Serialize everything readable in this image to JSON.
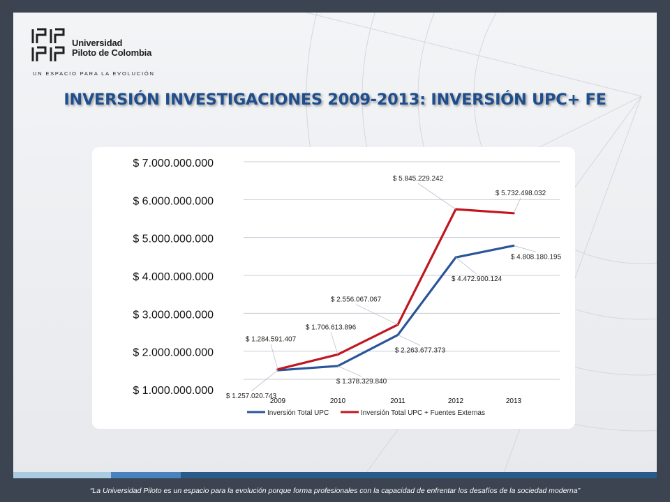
{
  "logo": {
    "name_line1": "Universidad",
    "name_line2": "Piloto de Colombia",
    "tagline": "UN ESPACIO PARA LA EVOLUCIÓN"
  },
  "title": "INVERSIÓN INVESTIGACIONES 2009-2013: INVERSIÓN UPC+ FE",
  "footer": "“La Universidad Piloto es un espacio para la evolución porque forma profesionales con la capacidad de enfrentar los desafíos de la sociedad moderna”",
  "colors": {
    "series_upc": "#2a5599",
    "series_upc_fe": "#c0161f",
    "title": "#1f4e8c",
    "footer_bar_segments": [
      "#a9cce3",
      "#4a82bf",
      "#2a5a8a"
    ]
  },
  "chart_data": {
    "type": "line",
    "categories": [
      "2009",
      "2010",
      "2011",
      "2012",
      "2013"
    ],
    "ytick_labels": [
      "$ 7.000.000.000",
      "$ 6.000.000.000",
      "$ 5.000.000.000",
      "$ 4.000.000.000",
      "$ 3.000.000.000",
      "$ 2.000.000.000",
      "$ 1.000.000.000"
    ],
    "grid": true,
    "legend_position": "bottom",
    "series": [
      {
        "name": "Inversión Total UPC",
        "values": [
          1257020743,
          1378329840,
          2263677373,
          4472900124,
          4808180195
        ],
        "labels": [
          "$ 1.257.020.743",
          "$ 1.378.329.840",
          "$ 2.263.677.373",
          "$ 4.472.900.124",
          "$ 4.808.180.195"
        ]
      },
      {
        "name": "Inversión Total UPC + Fuentes Externas",
        "values": [
          1284591407,
          1706613896,
          2556067067,
          5845229242,
          5732498032
        ],
        "labels": [
          "$ 1.284.591.407",
          "$ 1.706.613.896",
          "$ 2.556.067.067",
          "$ 5.845.229.242",
          "$ 5.732.498.032"
        ]
      }
    ]
  }
}
